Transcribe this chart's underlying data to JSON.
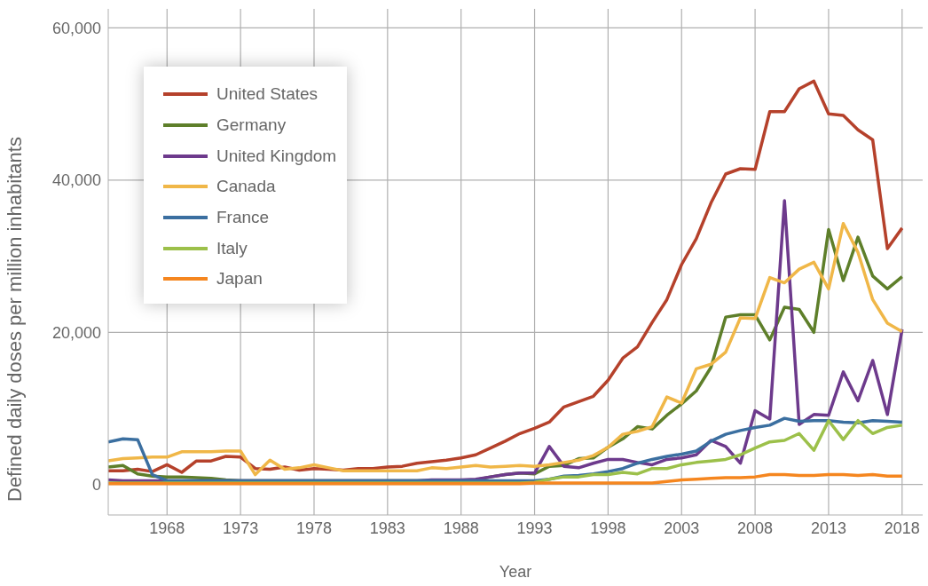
{
  "chart_data": {
    "type": "line",
    "xlabel": "Year",
    "ylabel": "Defined daily doses per million inhabitants",
    "x": [
      1964,
      1965,
      1966,
      1967,
      1968,
      1969,
      1970,
      1971,
      1972,
      1973,
      1974,
      1975,
      1976,
      1977,
      1978,
      1979,
      1980,
      1981,
      1982,
      1983,
      1984,
      1985,
      1986,
      1987,
      1988,
      1989,
      1990,
      1991,
      1992,
      1993,
      1994,
      1995,
      1996,
      1997,
      1998,
      1999,
      2000,
      2001,
      2002,
      2003,
      2004,
      2005,
      2006,
      2007,
      2008,
      2009,
      2010,
      2011,
      2012,
      2013,
      2014,
      2015,
      2016,
      2017,
      2018
    ],
    "series": [
      {
        "name": "United States",
        "color": "#b5412b",
        "values": [
          1800,
          1800,
          2000,
          1700,
          2600,
          1600,
          3100,
          3100,
          3700,
          3600,
          2100,
          2000,
          2300,
          1900,
          2100,
          2000,
          1900,
          2100,
          2100,
          2300,
          2400,
          2800,
          3000,
          3200,
          3500,
          3900,
          4800,
          5700,
          6700,
          7400,
          8200,
          10200,
          10900,
          11600,
          13700,
          16600,
          18100,
          21300,
          24300,
          28900,
          32300,
          37000,
          40800,
          41500,
          41400,
          49000,
          49000,
          52000,
          53000,
          48700,
          48500,
          46600,
          45300,
          31000,
          33700
        ]
      },
      {
        "name": "Germany",
        "color": "#5e7f2a",
        "values": [
          2300,
          2500,
          1400,
          1100,
          1000,
          1000,
          900,
          800,
          600,
          500,
          500,
          500,
          500,
          500,
          500,
          500,
          500,
          500,
          500,
          500,
          500,
          500,
          500,
          500,
          500,
          600,
          1000,
          1300,
          1500,
          1400,
          2400,
          2500,
          3400,
          3500,
          4900,
          6000,
          7600,
          7300,
          9100,
          10600,
          12300,
          15400,
          22000,
          22300,
          22300,
          19000,
          23300,
          23000,
          20000,
          33500,
          26800,
          32500,
          27400,
          25700,
          27300
        ]
      },
      {
        "name": "United Kingdom",
        "color": "#6d3a8c",
        "values": [
          600,
          500,
          500,
          500,
          500,
          500,
          500,
          500,
          500,
          500,
          500,
          500,
          500,
          500,
          500,
          500,
          500,
          500,
          500,
          500,
          500,
          500,
          600,
          600,
          600,
          700,
          1000,
          1300,
          1500,
          1500,
          5000,
          2400,
          2200,
          2800,
          3300,
          3300,
          2900,
          2600,
          3300,
          3500,
          3900,
          5800,
          5000,
          2800,
          9700,
          8600,
          37300,
          7900,
          9200,
          9100,
          14800,
          11000,
          16300,
          9200,
          20400
        ]
      },
      {
        "name": "Canada",
        "color": "#f0b748",
        "values": [
          3100,
          3400,
          3500,
          3600,
          3600,
          4300,
          4300,
          4300,
          4400,
          4400,
          1300,
          3200,
          2000,
          2200,
          2600,
          2200,
          1800,
          1800,
          1800,
          1800,
          1800,
          1800,
          2200,
          2100,
          2300,
          2500,
          2300,
          2400,
          2500,
          2400,
          2600,
          2900,
          3200,
          3800,
          4900,
          6600,
          7000,
          7600,
          11500,
          10700,
          15200,
          15800,
          17400,
          21900,
          21800,
          27200,
          26500,
          28300,
          29200,
          25700,
          34300,
          30500,
          24300,
          21200,
          20100
        ]
      },
      {
        "name": "France",
        "color": "#3b6fa0",
        "values": [
          5600,
          6000,
          5900,
          1300,
          500,
          500,
          500,
          500,
          500,
          500,
          500,
          500,
          500,
          500,
          500,
          500,
          500,
          500,
          500,
          500,
          500,
          500,
          500,
          500,
          500,
          500,
          500,
          500,
          500,
          500,
          700,
          1100,
          1200,
          1400,
          1700,
          2100,
          2800,
          3300,
          3700,
          4000,
          4400,
          5700,
          6600,
          7100,
          7500,
          7800,
          8700,
          8300,
          8400,
          8400,
          8200,
          8100,
          8400,
          8300,
          8200
        ]
      },
      {
        "name": "Italy",
        "color": "#9cc04a",
        "values": [
          200,
          200,
          200,
          200,
          200,
          200,
          200,
          200,
          200,
          200,
          200,
          200,
          200,
          200,
          200,
          200,
          200,
          200,
          200,
          200,
          200,
          200,
          200,
          200,
          200,
          200,
          200,
          200,
          200,
          300,
          700,
          1000,
          1000,
          1300,
          1300,
          1600,
          1400,
          2100,
          2100,
          2600,
          2900,
          3100,
          3300,
          3900,
          4800,
          5600,
          5800,
          6700,
          4500,
          8400,
          5900,
          8400,
          6700,
          7500,
          7800
        ]
      },
      {
        "name": "Japan",
        "color": "#f5861f",
        "values": [
          100,
          100,
          100,
          100,
          100,
          100,
          100,
          100,
          100,
          100,
          100,
          100,
          100,
          100,
          100,
          100,
          100,
          100,
          100,
          100,
          100,
          100,
          100,
          100,
          100,
          100,
          100,
          100,
          100,
          200,
          200,
          200,
          200,
          200,
          200,
          200,
          200,
          200,
          400,
          600,
          700,
          800,
          900,
          900,
          1000,
          1300,
          1300,
          1200,
          1200,
          1300,
          1300,
          1200,
          1300,
          1100,
          1100
        ]
      }
    ],
    "xlim": [
      1964,
      2019.4
    ],
    "xticks": [
      1968,
      1973,
      1978,
      1983,
      1988,
      1993,
      1998,
      2003,
      2008,
      2013,
      2018
    ],
    "ylim": [
      -4000,
      62500
    ],
    "yticks": [
      0,
      {
        "value": 20000,
        "label": "20,000"
      },
      {
        "value": 40000,
        "label": "40,000"
      },
      {
        "value": 60000,
        "label": "60,000"
      }
    ],
    "grid": true,
    "legend": "top left",
    "marker": "none",
    "line_style": "solid"
  }
}
